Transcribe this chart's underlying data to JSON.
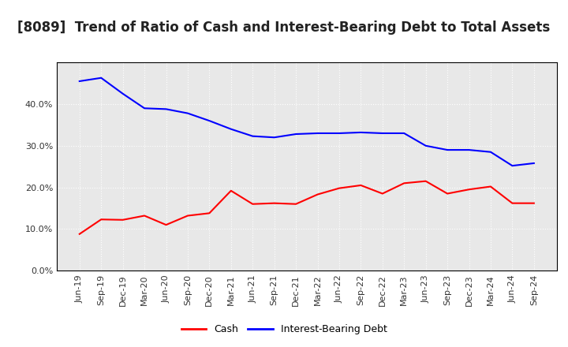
{
  "title": "[8089]  Trend of Ratio of Cash and Interest-Bearing Debt to Total Assets",
  "x_labels": [
    "Jun-19",
    "Sep-19",
    "Dec-19",
    "Mar-20",
    "Jun-20",
    "Sep-20",
    "Dec-20",
    "Mar-21",
    "Jun-21",
    "Sep-21",
    "Dec-21",
    "Mar-22",
    "Jun-22",
    "Sep-22",
    "Dec-22",
    "Mar-23",
    "Jun-23",
    "Sep-23",
    "Dec-23",
    "Mar-24",
    "Jun-24",
    "Sep-24"
  ],
  "cash": [
    0.088,
    0.123,
    0.122,
    0.132,
    0.11,
    0.132,
    0.138,
    0.192,
    0.16,
    0.162,
    0.16,
    0.183,
    0.198,
    0.205,
    0.185,
    0.21,
    0.215,
    0.185,
    0.195,
    0.202,
    0.162,
    0.162
  ],
  "interest_bearing_debt": [
    0.455,
    0.463,
    0.425,
    0.39,
    0.388,
    0.378,
    0.36,
    0.34,
    0.323,
    0.32,
    0.328,
    0.33,
    0.33,
    0.332,
    0.33,
    0.33,
    0.3,
    0.29,
    0.29,
    0.285,
    0.252,
    0.258
  ],
  "cash_color": "#ff0000",
  "debt_color": "#0000ff",
  "background_color": "#ffffff",
  "plot_bg_color": "#e8e8e8",
  "grid_color": "#ffffff",
  "ylim": [
    0.0,
    0.5
  ],
  "yticks": [
    0.0,
    0.1,
    0.2,
    0.3,
    0.4
  ],
  "legend_labels": [
    "Cash",
    "Interest-Bearing Debt"
  ],
  "title_fontsize": 12,
  "tick_fontsize": 8,
  "legend_fontsize": 9
}
